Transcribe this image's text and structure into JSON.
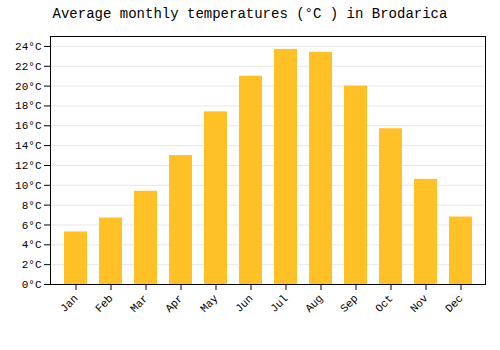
{
  "chart_data": {
    "type": "bar",
    "title": "Average monthly temperatures (°C ) in Brodarica",
    "categories": [
      "Jan",
      "Feb",
      "Mar",
      "Apr",
      "May",
      "Jun",
      "Jul",
      "Aug",
      "Sep",
      "Oct",
      "Nov",
      "Dec"
    ],
    "values": [
      5.3,
      6.7,
      9.4,
      13.0,
      17.4,
      21.0,
      23.7,
      23.4,
      20.0,
      15.7,
      10.6,
      6.8
    ],
    "color": "#FFC125",
    "ylim": [
      0,
      25
    ],
    "yticks": [
      {
        "value": 0,
        "label": "0°C"
      },
      {
        "value": 2,
        "label": "2°C"
      },
      {
        "value": 4,
        "label": "4°C"
      },
      {
        "value": 6,
        "label": "6°C"
      },
      {
        "value": 8,
        "label": "8°C"
      },
      {
        "value": 10,
        "label": "10°C"
      },
      {
        "value": 12,
        "label": "12°C"
      },
      {
        "value": 14,
        "label": "14°C"
      },
      {
        "value": 16,
        "label": "16°C"
      },
      {
        "value": 18,
        "label": "18°C"
      },
      {
        "value": 20,
        "label": "20°C"
      },
      {
        "value": 22,
        "label": "22°C"
      },
      {
        "value": 24,
        "label": "24°C"
      }
    ],
    "grid": true
  }
}
